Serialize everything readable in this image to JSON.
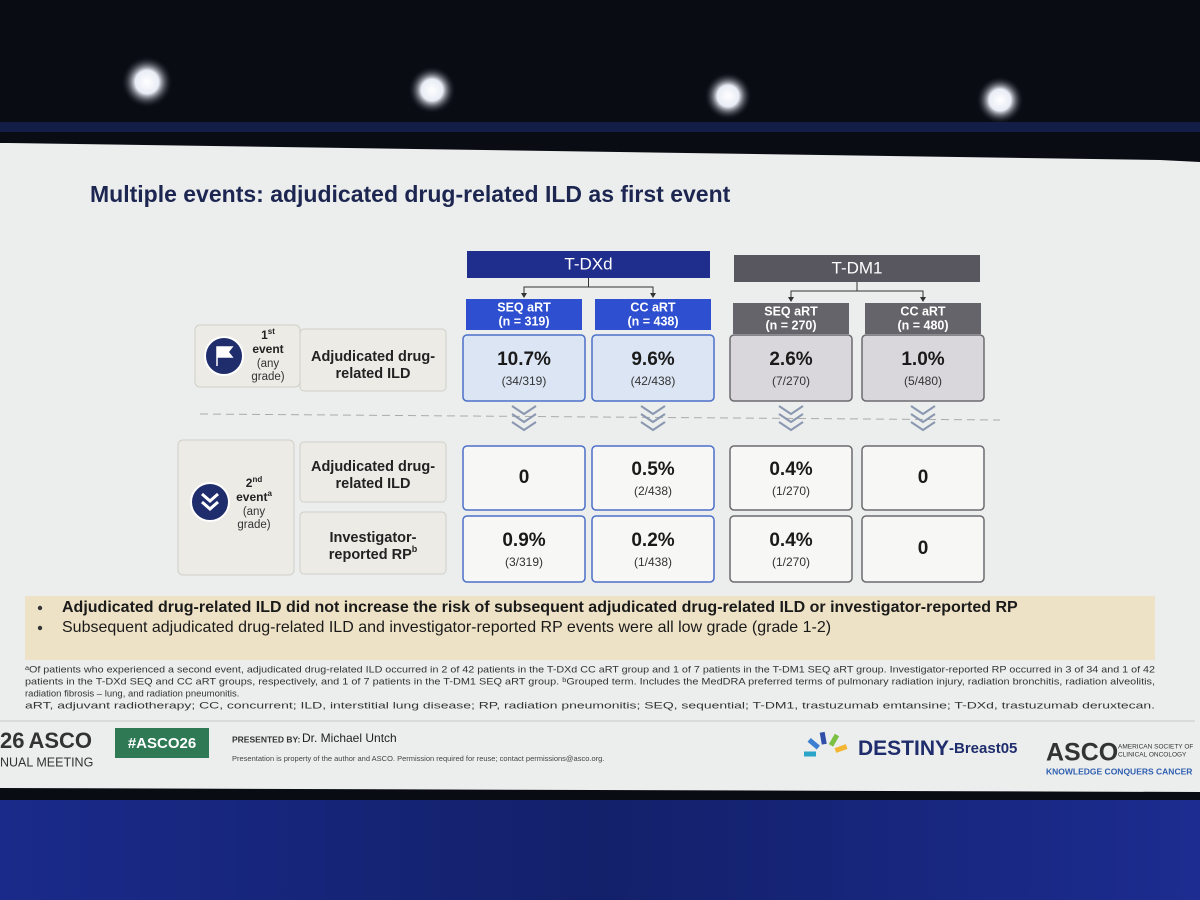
{
  "title": "Multiple events: adjudicated drug-related ILD as first event",
  "groups": [
    {
      "name": "T-DXd",
      "arms": [
        {
          "label": "SEQ aRT",
          "n": "(n = 319)"
        },
        {
          "label": "CC aRT",
          "n": "(n = 438)"
        }
      ]
    },
    {
      "name": "T-DM1",
      "arms": [
        {
          "label": "SEQ aRT",
          "n": "(n = 270)"
        },
        {
          "label": "CC aRT",
          "n": "(n = 480)"
        }
      ]
    }
  ],
  "events": [
    {
      "num": "1",
      "sup": "st",
      "word": "event",
      "note": [
        "(any",
        "grade)"
      ]
    },
    {
      "num": "2",
      "sup": "nd",
      "word": "event",
      "word_sup": "a",
      "note": [
        "(any",
        "grade)"
      ]
    }
  ],
  "rows": [
    {
      "label": [
        "Adjudicated drug-",
        "related ILD"
      ],
      "cells": [
        {
          "value": "10.7%",
          "detail": "(34/319)"
        },
        {
          "value": "9.6%",
          "detail": "(42/438)"
        },
        {
          "value": "2.6%",
          "detail": "(7/270)"
        },
        {
          "value": "1.0%",
          "detail": "(5/480)"
        }
      ]
    },
    {
      "label": [
        "Adjudicated drug-",
        "related ILD"
      ],
      "cells": [
        {
          "value": "0"
        },
        {
          "value": "0.5%",
          "detail": "(2/438)"
        },
        {
          "value": "0.4%",
          "detail": "(1/270)"
        },
        {
          "value": "0"
        }
      ]
    },
    {
      "label": [
        "Investigator-",
        "reported RP"
      ],
      "label_sup": "b",
      "cells": [
        {
          "value": "0.9%",
          "detail": "(3/319)"
        },
        {
          "value": "0.2%",
          "detail": "(1/438)"
        },
        {
          "value": "0.4%",
          "detail": "(1/270)"
        },
        {
          "value": "0"
        }
      ]
    }
  ],
  "bullets": [
    "Adjudicated drug-related ILD did not increase the risk of subsequent adjudicated drug-related ILD or investigator-reported RP",
    "Subsequent adjudicated drug-related ILD and investigator-reported RP events were all low grade (grade 1-2)"
  ],
  "footnote": [
    "ᵃOf patients who experienced a second event, adjudicated drug-related ILD occurred in 2 of 42 patients in the T-DXd CC aRT group and 1 of 7 patients in the T-DM1 SEQ aRT group. Investigator-reported RP occurred in 3 of 34 and 1 of 42",
    "patients in the T-DXd SEQ and CC aRT groups, respectively, and 1 of 7 patients in the T-DM1 SEQ aRT group. ᵇGrouped term. Includes the MedDRA preferred terms of pulmonary radiation injury, radiation bronchitis, radiation alveolitis,",
    "radiation fibrosis – lung, and radiation pneumonitis.",
    "aRT, adjuvant radiotherapy; CC, concurrent; ILD, interstitial lung disease; RP, radiation pneumonitis; SEQ, sequential; T-DM1, trastuzumab emtansine; T-DXd, trastuzumab deruxtecan."
  ],
  "footer": {
    "meeting_year": "26",
    "meeting_org": "ASCO",
    "meeting_sub": "NUAL MEETING",
    "hashtag": "#ASCO26",
    "presented_by": "PRESENTED BY:",
    "presenter": "Dr. Michael Untch",
    "notice": "Presentation is property of the author and ASCO. Permission required for reuse; contact permissions@asco.org.",
    "trial": "DESTINY",
    "trial_suffix": "-Breast05",
    "society": "ASCO",
    "society_name": [
      "AMERICAN SOCIETY OF",
      "CLINICAL ONCOLOGY"
    ],
    "motto": "KNOWLEDGE CONQUERS CANCER"
  }
}
